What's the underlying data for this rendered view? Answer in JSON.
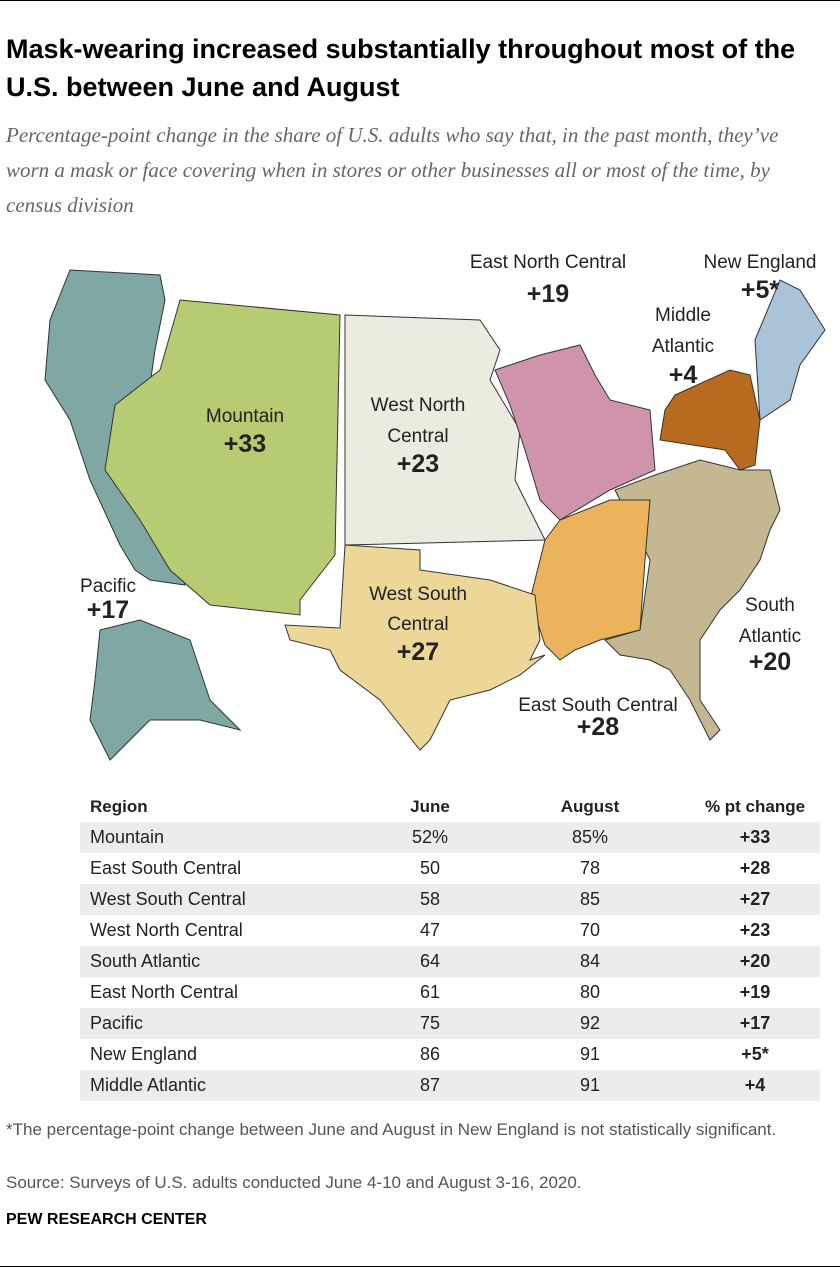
{
  "header": {
    "title": "Mask-wearing increased substantially throughout most of the U.S. between June and August",
    "subtitle": "Percentage-point change in the share of U.S. adults who say that, in the past month, they’ve worn a mask or face covering when in stores or other businesses all or most of the time, by census division"
  },
  "map": {
    "regions": [
      {
        "name": "Pacific",
        "change": "+17"
      },
      {
        "name": "Mountain",
        "change": "+33"
      },
      {
        "name": "West North Central",
        "change": "+23"
      },
      {
        "name": "East North Central",
        "change": "+19"
      },
      {
        "name": "Middle Atlantic",
        "change": "+4"
      },
      {
        "name": "New England",
        "change": "+5*"
      },
      {
        "name": "South Atlantic",
        "change": "+20"
      },
      {
        "name": "East South Central",
        "change": "+28"
      },
      {
        "name": "West South Central",
        "change": "+27"
      }
    ]
  },
  "table": {
    "columns": [
      "Region",
      "June",
      "August",
      "% pt change"
    ],
    "rows": [
      [
        "Mountain",
        "52%",
        "85%",
        "+33"
      ],
      [
        "East South Central",
        "50",
        "78",
        "+28"
      ],
      [
        "West South Central",
        "58",
        "85",
        "+27"
      ],
      [
        "West North Central",
        "47",
        "70",
        "+23"
      ],
      [
        "South Atlantic",
        "64",
        "84",
        "+20"
      ],
      [
        "East North Central",
        "61",
        "80",
        "+19"
      ],
      [
        "Pacific",
        "75",
        "92",
        "+17"
      ],
      [
        "New England",
        "86",
        "91",
        "+5*"
      ],
      [
        "Middle Atlantic",
        "87",
        "91",
        "+4"
      ]
    ]
  },
  "footer": {
    "note": "*The percentage-point change between June and August in New England is not statistically significant.",
    "source": "Source: Surveys of U.S. adults conducted June 4-10 and August 3-16, 2020.",
    "brand": "PEW RESEARCH CENTER"
  }
}
